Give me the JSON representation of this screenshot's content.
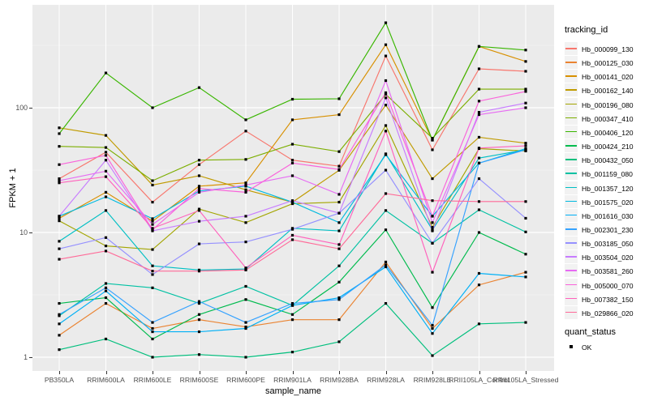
{
  "chart_data": {
    "type": "line",
    "xlabel": "sample_name",
    "ylabel": "FPKM + 1",
    "y_scale": "log10",
    "y_ticks": [
      1,
      10,
      100
    ],
    "ylim": [
      1,
      650
    ],
    "grid": "on",
    "legend_position": "right",
    "point_shape": "filled-square",
    "point_color": "#000000",
    "categories": [
      "PB350LA",
      "RRIM600LA",
      "RRIM600LE",
      "RRIM600SE",
      "RRIM600PE",
      "RRIM901LA",
      "RRIM928BA",
      "RRIM928LA",
      "RRIM928LE",
      "RRII105LA_Control",
      "RRII105LA_Stressed"
    ],
    "series": [
      {
        "name": "Hb_000099_130",
        "color": "#F8766D",
        "values": [
          27,
          44,
          17.5,
          35,
          65,
          38,
          34,
          260,
          46,
          205,
          196
        ]
      },
      {
        "name": "Hb_000125_030",
        "color": "#EA8331",
        "values": [
          1.5,
          2.7,
          1.7,
          2.0,
          1.75,
          2.0,
          2.0,
          5.8,
          1.7,
          3.8,
          4.8
        ]
      },
      {
        "name": "Hb_000141_020",
        "color": "#D89000",
        "values": [
          13,
          21,
          12.3,
          23.5,
          25,
          80,
          88,
          320,
          55,
          310,
          235
        ]
      },
      {
        "name": "Hb_000162_140",
        "color": "#C09B00",
        "values": [
          69,
          60,
          24,
          28.5,
          22,
          17.5,
          31.5,
          105,
          27,
          58,
          52
        ]
      },
      {
        "name": "Hb_000196_080",
        "color": "#A3A500",
        "values": [
          12.4,
          7.8,
          7.3,
          15.4,
          12,
          17,
          17.5,
          72,
          11,
          47,
          45
        ]
      },
      {
        "name": "Hb_000347_410",
        "color": "#7CAE00",
        "values": [
          49,
          48,
          26,
          38,
          38.5,
          51,
          44.5,
          128,
          57,
          141,
          141
        ]
      },
      {
        "name": "Hb_000406_120",
        "color": "#39B600",
        "values": [
          62,
          190,
          100,
          145,
          80,
          117,
          118,
          480,
          55,
          310,
          290
        ]
      },
      {
        "name": "Hb_000424_210",
        "color": "#00BB4E",
        "values": [
          2.7,
          3.0,
          1.4,
          2.2,
          2.9,
          2.2,
          4.0,
          10.5,
          2.5,
          10,
          6.7
        ]
      },
      {
        "name": "Hb_000432_050",
        "color": "#00BF7D",
        "values": [
          1.15,
          1.4,
          1.0,
          1.05,
          1.0,
          1.1,
          1.33,
          2.7,
          1.03,
          1.85,
          1.9
        ]
      },
      {
        "name": "Hb_001159_080",
        "color": "#00C1A3",
        "values": [
          2.15,
          3.9,
          3.6,
          2.7,
          3.7,
          2.6,
          5.4,
          15,
          8.2,
          15.2,
          10.1
        ]
      },
      {
        "name": "Hb_001357_120",
        "color": "#00BFC4",
        "values": [
          8.5,
          15,
          5.4,
          5.0,
          5.1,
          10.8,
          10.3,
          42.7,
          10.5,
          39.5,
          46
        ]
      },
      {
        "name": "Hb_001575_020",
        "color": "#00BAE0",
        "values": [
          13.5,
          19.3,
          12.9,
          21.5,
          23.5,
          17.5,
          12.0,
          42,
          13.5,
          36,
          47
        ]
      },
      {
        "name": "Hb_001616_030",
        "color": "#00B0F6",
        "values": [
          1.85,
          3.4,
          1.6,
          1.6,
          1.7,
          2.6,
          3.0,
          5.3,
          1.55,
          4.7,
          4.4
        ]
      },
      {
        "name": "Hb_002301_230",
        "color": "#35A2FF",
        "values": [
          2.2,
          3.6,
          1.9,
          2.8,
          1.9,
          2.7,
          2.9,
          5.5,
          1.8,
          36,
          46
        ]
      },
      {
        "name": "Hb_003185_050",
        "color": "#9590FF",
        "values": [
          7.4,
          9.1,
          4.6,
          8.1,
          8.4,
          10.6,
          14.3,
          31.6,
          8.2,
          27,
          13
        ]
      },
      {
        "name": "Hb_003504_020",
        "color": "#C77CFF",
        "values": [
          13.5,
          38,
          10.3,
          12.3,
          13.5,
          18,
          14.3,
          120,
          10.3,
          92,
          109
        ]
      },
      {
        "name": "Hb_003581_260",
        "color": "#E76BF3",
        "values": [
          26,
          31,
          11.6,
          21,
          24,
          28.5,
          20.2,
          165,
          12,
          88,
          100
        ]
      },
      {
        "name": "Hb_005000_070",
        "color": "#FA62DB",
        "values": [
          35,
          41.5,
          10.5,
          22.5,
          21,
          36,
          32,
          132,
          13.5,
          113,
          135
        ]
      },
      {
        "name": "Hb_007382_150",
        "color": "#FF62BC",
        "values": [
          25,
          28,
          10.8,
          15,
          5.2,
          9.5,
          8,
          65,
          4.8,
          47.5,
          49.5
        ]
      },
      {
        "name": "Hb_029866_020",
        "color": "#FF6A98",
        "values": [
          6.1,
          7.1,
          4.9,
          4.9,
          5.0,
          8.75,
          7.4,
          20.5,
          18,
          17.7,
          17.7
        ]
      }
    ]
  },
  "legend": {
    "tracking_title": "tracking_id",
    "quant_title": "quant_status",
    "quant_items": [
      {
        "label": "OK"
      }
    ]
  },
  "colors": {
    "panel_bg": "#EBEBEB",
    "grid_major": "#FFFFFF",
    "grid_minor": "#FFFFFF",
    "axis_text": "#4D4D4D",
    "title_text": "#000000",
    "legend_key_bg": "#F2F2F2",
    "point": "#000000"
  }
}
